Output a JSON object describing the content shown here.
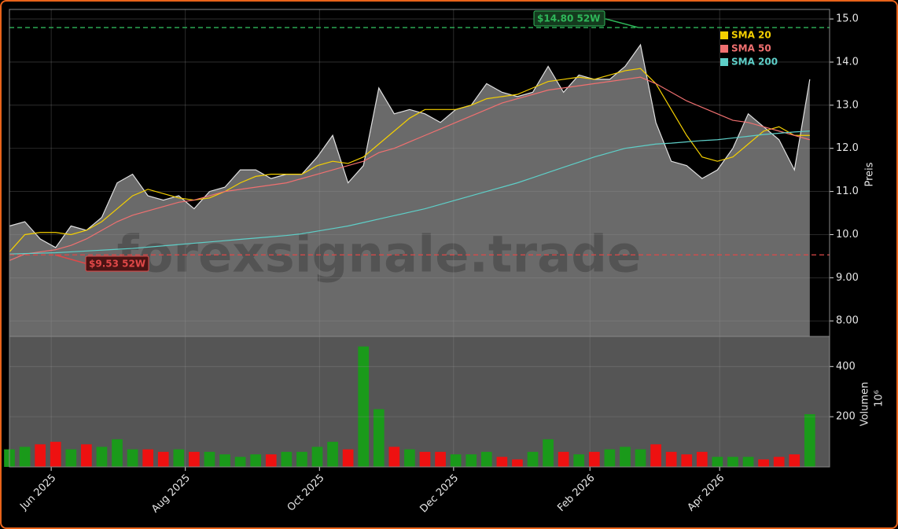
{
  "chart_data": {
    "type": "area",
    "x": [
      0,
      7,
      14,
      21,
      28,
      35,
      42,
      49,
      56,
      63,
      70,
      77,
      84,
      91,
      98,
      105,
      112,
      119,
      126,
      133,
      140,
      147,
      154,
      161,
      168,
      175,
      182,
      189,
      196,
      203,
      210,
      217,
      224,
      231,
      238,
      245,
      252,
      259,
      266,
      273,
      280,
      287,
      294,
      301,
      308,
      315,
      322,
      329,
      336,
      343,
      350,
      357,
      364
    ],
    "xlim": [
      0,
      373
    ],
    "xticks": [
      {
        "value": 19,
        "label": "Jun 2025"
      },
      {
        "value": 80,
        "label": "Aug 2025"
      },
      {
        "value": 141,
        "label": "Oct 2025"
      },
      {
        "value": 202,
        "label": "Dec 2025"
      },
      {
        "value": 264,
        "label": "Feb 2026"
      },
      {
        "value": 323,
        "label": "Apr 2026"
      }
    ],
    "values": [
      10.2,
      10.3,
      9.9,
      9.7,
      10.2,
      10.1,
      10.4,
      11.2,
      11.4,
      10.9,
      10.8,
      10.9,
      10.6,
      11.0,
      11.1,
      11.5,
      11.5,
      11.3,
      11.4,
      11.4,
      11.8,
      12.3,
      11.2,
      11.6,
      13.4,
      12.8,
      12.9,
      12.8,
      12.6,
      12.9,
      13.0,
      13.5,
      13.3,
      13.2,
      13.3,
      13.9,
      13.3,
      13.7,
      13.6,
      13.6,
      13.9,
      14.4,
      12.6,
      11.7,
      11.6,
      11.3,
      11.5,
      12.0,
      12.8,
      12.5,
      12.2,
      11.5,
      13.6
    ],
    "color": "#6a6a6a",
    "ylim": [
      7.64,
      15.22
    ],
    "yticks": [
      {
        "value": 8,
        "label": "8.00"
      },
      {
        "value": 9,
        "label": "9.00"
      },
      {
        "value": 10,
        "label": "10.0"
      },
      {
        "value": 11,
        "label": "11.0"
      },
      {
        "value": 12,
        "label": "12.0"
      },
      {
        "value": 13,
        "label": "13.0"
      },
      {
        "value": 14,
        "label": "14.0"
      },
      {
        "value": 15,
        "label": "15.0"
      }
    ],
    "y_label": "Preis",
    "grid": true,
    "legend": "upper right",
    "series": [
      {
        "name": "SMA 20",
        "color": "#f5d000",
        "values": [
          9.6,
          10.0,
          10.05,
          10.05,
          10.0,
          10.1,
          10.3,
          10.6,
          10.9,
          11.05,
          10.95,
          10.85,
          10.8,
          10.85,
          11.0,
          11.2,
          11.35,
          11.4,
          11.4,
          11.4,
          11.6,
          11.7,
          11.65,
          11.8,
          12.1,
          12.4,
          12.7,
          12.9,
          12.9,
          12.9,
          13.0,
          13.15,
          13.2,
          13.25,
          13.4,
          13.55,
          13.6,
          13.65,
          13.6,
          13.7,
          13.8,
          13.85,
          13.5,
          12.9,
          12.3,
          11.8,
          11.7,
          11.8,
          12.1,
          12.4,
          12.5,
          12.3,
          12.3
        ]
      },
      {
        "name": "SMA 50",
        "color": "#f07070",
        "values": [
          9.4,
          9.55,
          9.6,
          9.65,
          9.75,
          9.9,
          10.1,
          10.3,
          10.45,
          10.55,
          10.65,
          10.75,
          10.8,
          10.9,
          11.0,
          11.05,
          11.1,
          11.15,
          11.2,
          11.3,
          11.4,
          11.5,
          11.6,
          11.7,
          11.9,
          12.0,
          12.15,
          12.3,
          12.45,
          12.6,
          12.75,
          12.9,
          13.05,
          13.15,
          13.25,
          13.35,
          13.4,
          13.45,
          13.5,
          13.55,
          13.6,
          13.65,
          13.5,
          13.3,
          13.1,
          12.95,
          12.8,
          12.65,
          12.6,
          12.5,
          12.4,
          12.3,
          12.2
        ]
      },
      {
        "name": "SMA 200",
        "color": "#5ecfc8",
        "values": [
          9.55,
          9.56,
          9.57,
          9.58,
          9.6,
          9.62,
          9.64,
          9.66,
          9.68,
          9.71,
          9.74,
          9.77,
          9.8,
          9.83,
          9.86,
          9.89,
          9.92,
          9.95,
          9.98,
          10.02,
          10.08,
          10.14,
          10.2,
          10.28,
          10.36,
          10.44,
          10.52,
          10.6,
          10.7,
          10.8,
          10.9,
          11.0,
          11.1,
          11.2,
          11.32,
          11.44,
          11.56,
          11.68,
          11.8,
          11.9,
          12.0,
          12.05,
          12.1,
          12.12,
          12.15,
          12.18,
          12.2,
          12.24,
          12.28,
          12.32,
          12.35,
          12.38,
          12.4
        ]
      }
    ],
    "annotations": [
      {
        "value": 14.8,
        "label": "$14.80 52W",
        "color": "#2fb85a"
      },
      {
        "value": 9.53,
        "label": "$9.53 52W",
        "color": "#e04848"
      }
    ],
    "watermark": "forexsignale.trade",
    "volume": {
      "type": "bar",
      "values": [
        70,
        80,
        90,
        100,
        70,
        90,
        80,
        110,
        70,
        70,
        60,
        70,
        60,
        60,
        50,
        40,
        50,
        50,
        60,
        60,
        80,
        100,
        70,
        480,
        230,
        80,
        70,
        60,
        60,
        50,
        50,
        60,
        40,
        30,
        60,
        110,
        60,
        50,
        60,
        70,
        80,
        70,
        90,
        60,
        50,
        60,
        40,
        40,
        40,
        30,
        40,
        50,
        210
      ],
      "ylim": [
        0,
        520
      ],
      "yticks": [
        200,
        400
      ],
      "y_label": "Volumen",
      "scale_label": "10⁶",
      "up_color": "#1a9a1a",
      "down_color": "#ee1111"
    }
  }
}
